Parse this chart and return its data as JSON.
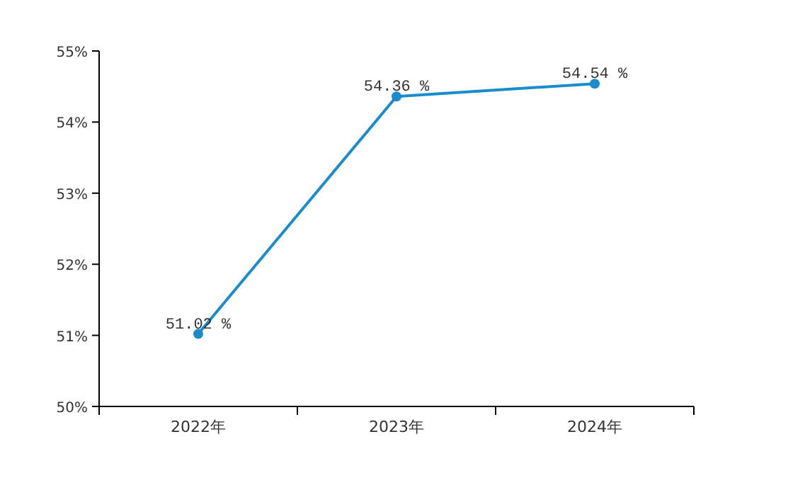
{
  "chart_data": {
    "type": "line",
    "categories": [
      "2022年",
      "2023年",
      "2024年"
    ],
    "values": [
      51.02,
      54.36,
      54.54
    ],
    "color": "#1a8ccc",
    "marker": "circle",
    "ylim": [
      50,
      55
    ],
    "yticks": [
      {
        "value": 50,
        "label": "50%"
      },
      {
        "value": 51,
        "label": "51%"
      },
      {
        "value": 52,
        "label": "52%"
      },
      {
        "value": 53,
        "label": "53%"
      },
      {
        "value": 54,
        "label": "54%"
      },
      {
        "value": 55,
        "label": "55%"
      }
    ],
    "value_labels": [
      "51.02 %",
      "54.36 %",
      "54.54 %"
    ]
  }
}
